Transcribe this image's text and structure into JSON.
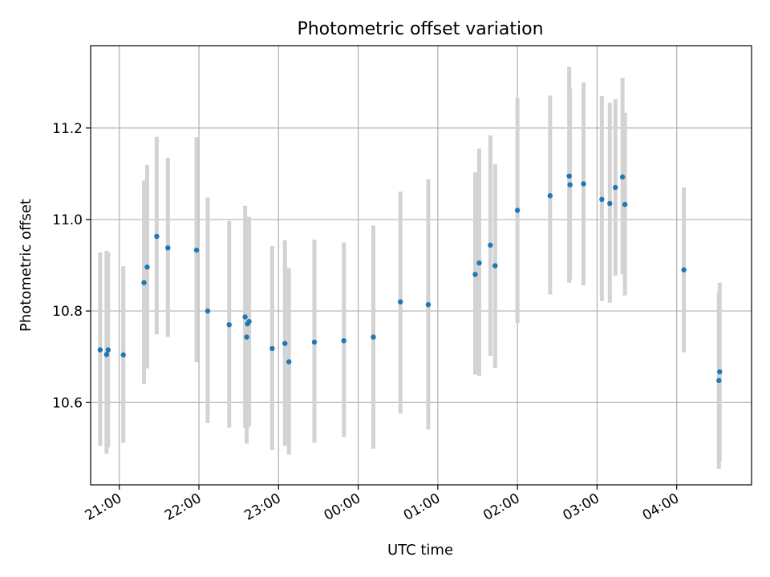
{
  "chart_data": {
    "type": "scatter",
    "title": "Photometric offset variation",
    "xlabel": "UTC time",
    "ylabel": "Photometric offset",
    "x_axis": {
      "kind": "time",
      "reference_time": "20:00",
      "range_hours": [
        20.64,
        28.94
      ],
      "ticks": [
        {
          "hour": 21,
          "label": "21:00"
        },
        {
          "hour": 22,
          "label": "22:00"
        },
        {
          "hour": 23,
          "label": "23:00"
        },
        {
          "hour": 24,
          "label": "00:00"
        },
        {
          "hour": 25,
          "label": "01:00"
        },
        {
          "hour": 26,
          "label": "02:00"
        },
        {
          "hour": 27,
          "label": "03:00"
        },
        {
          "hour": 28,
          "label": "04:00"
        }
      ]
    },
    "y_axis": {
      "range": [
        10.42,
        11.38
      ],
      "ticks": [
        {
          "value": 10.6,
          "label": "10.6"
        },
        {
          "value": 10.8,
          "label": "10.8"
        },
        {
          "value": 11.0,
          "label": "11.0"
        },
        {
          "value": 11.2,
          "label": "11.2"
        }
      ]
    },
    "grid": true,
    "marker_color": "#1f77b4",
    "errorbar_color": "#d3d3d3",
    "points": [
      {
        "t": 20.76,
        "y": 10.715,
        "lo": 10.505,
        "hi": 10.928
      },
      {
        "t": 20.84,
        "y": 10.705,
        "lo": 10.488,
        "hi": 10.932
      },
      {
        "t": 20.86,
        "y": 10.715,
        "lo": 10.502,
        "hi": 10.928
      },
      {
        "t": 21.05,
        "y": 10.704,
        "lo": 10.512,
        "hi": 10.898
      },
      {
        "t": 21.31,
        "y": 10.862,
        "lo": 10.64,
        "hi": 11.085
      },
      {
        "t": 21.35,
        "y": 10.896,
        "lo": 10.675,
        "hi": 11.119
      },
      {
        "t": 21.47,
        "y": 10.963,
        "lo": 10.749,
        "hi": 11.181
      },
      {
        "t": 21.61,
        "y": 10.938,
        "lo": 10.743,
        "hi": 11.135
      },
      {
        "t": 21.97,
        "y": 10.933,
        "lo": 10.688,
        "hi": 11.18
      },
      {
        "t": 22.11,
        "y": 10.8,
        "lo": 10.555,
        "hi": 11.048
      },
      {
        "t": 22.38,
        "y": 10.77,
        "lo": 10.545,
        "hi": 10.997
      },
      {
        "t": 22.58,
        "y": 10.787,
        "lo": 10.545,
        "hi": 11.03
      },
      {
        "t": 22.6,
        "y": 10.743,
        "lo": 10.51,
        "hi": 10.978
      },
      {
        "t": 22.61,
        "y": 10.772,
        "lo": 10.545,
        "hi": 11.006
      },
      {
        "t": 22.63,
        "y": 10.777,
        "lo": 10.548,
        "hi": 11.006
      },
      {
        "t": 22.92,
        "y": 10.718,
        "lo": 10.496,
        "hi": 10.942
      },
      {
        "t": 23.08,
        "y": 10.729,
        "lo": 10.505,
        "hi": 10.955
      },
      {
        "t": 23.13,
        "y": 10.689,
        "lo": 10.486,
        "hi": 10.894
      },
      {
        "t": 23.45,
        "y": 10.732,
        "lo": 10.512,
        "hi": 10.956
      },
      {
        "t": 23.82,
        "y": 10.735,
        "lo": 10.525,
        "hi": 10.95
      },
      {
        "t": 24.19,
        "y": 10.743,
        "lo": 10.499,
        "hi": 10.987
      },
      {
        "t": 24.53,
        "y": 10.82,
        "lo": 10.576,
        "hi": 11.061
      },
      {
        "t": 24.88,
        "y": 10.814,
        "lo": 10.541,
        "hi": 11.088
      },
      {
        "t": 25.47,
        "y": 10.88,
        "lo": 10.661,
        "hi": 11.103
      },
      {
        "t": 25.52,
        "y": 10.905,
        "lo": 10.658,
        "hi": 11.155
      },
      {
        "t": 25.66,
        "y": 10.944,
        "lo": 10.702,
        "hi": 11.184
      },
      {
        "t": 25.72,
        "y": 10.899,
        "lo": 10.676,
        "hi": 11.121
      },
      {
        "t": 26.0,
        "y": 11.02,
        "lo": 10.774,
        "hi": 11.266
      },
      {
        "t": 26.41,
        "y": 11.052,
        "lo": 10.836,
        "hi": 11.271
      },
      {
        "t": 26.65,
        "y": 11.095,
        "lo": 10.862,
        "hi": 11.334
      },
      {
        "t": 26.66,
        "y": 11.076,
        "lo": 10.868,
        "hi": 11.287
      },
      {
        "t": 26.83,
        "y": 11.078,
        "lo": 10.856,
        "hi": 11.3
      },
      {
        "t": 27.06,
        "y": 11.044,
        "lo": 10.822,
        "hi": 11.27
      },
      {
        "t": 27.16,
        "y": 11.035,
        "lo": 10.818,
        "hi": 11.255
      },
      {
        "t": 27.23,
        "y": 11.07,
        "lo": 10.877,
        "hi": 11.263
      },
      {
        "t": 27.32,
        "y": 11.093,
        "lo": 10.88,
        "hi": 11.31
      },
      {
        "t": 27.35,
        "y": 11.033,
        "lo": 10.834,
        "hi": 11.233
      },
      {
        "t": 28.09,
        "y": 10.89,
        "lo": 10.71,
        "hi": 11.07
      },
      {
        "t": 28.53,
        "y": 10.648,
        "lo": 10.455,
        "hi": 10.842
      },
      {
        "t": 28.54,
        "y": 10.667,
        "lo": 10.472,
        "hi": 10.862
      }
    ]
  }
}
